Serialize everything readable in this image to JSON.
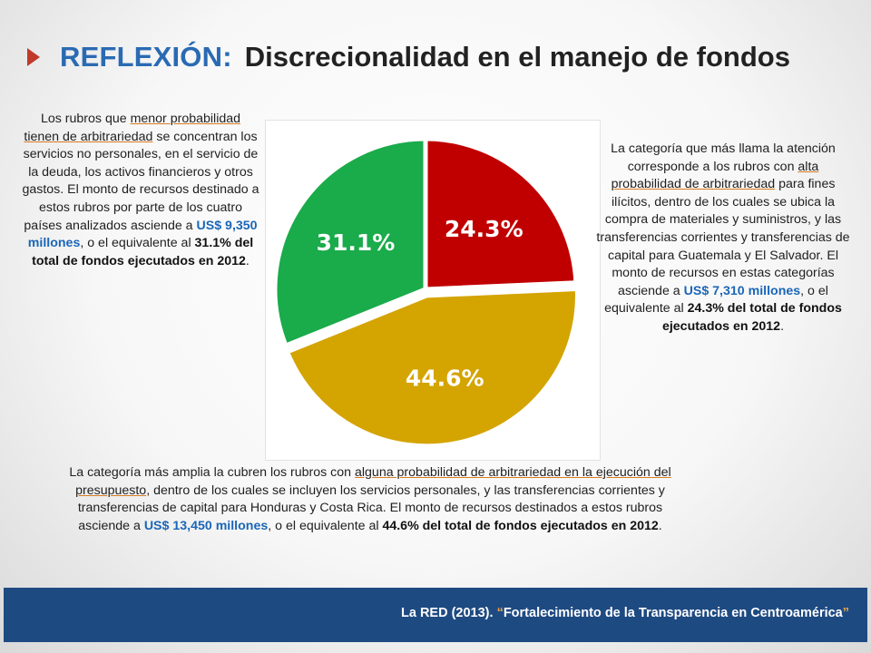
{
  "header": {
    "keyword": "REFLEXIÓN:",
    "title": "Discrecionalidad en el manejo de fondos"
  },
  "chart_data": {
    "type": "pie",
    "slices": [
      {
        "label": "24.3%",
        "value": 24.3,
        "color": "#c00000"
      },
      {
        "label": "44.6%",
        "value": 44.6,
        "color": "#d4a400"
      },
      {
        "label": "31.1%",
        "value": 31.1,
        "color": "#1aab4a"
      }
    ],
    "exploded_slice": "44.6%"
  },
  "left_text": {
    "p1": "Los rubros que ",
    "u1": "menor probabilidad tienen de arbitrariedad",
    "p2": " se concentran los servicios no personales, en el servicio de la deuda, los activos financieros y otros gastos.  El monto de recursos destinado a estos rubros por parte de los cuatro países analizados asciende a ",
    "amount": "US$ 9,350 millones",
    "p3": ", o el equivalente al ",
    "bold": "31.1% del total de fondos ejecutados en 2012",
    "end": "."
  },
  "right_text": {
    "p1": "La categoría que más llama la atención corresponde a los rubros con ",
    "u1": "alta probabilidad de arbitrariedad",
    "p2": " para fines ilícitos, dentro de los cuales se ubica la compra de materiales y suministros, y las transferencias corrientes y transferencias de capital para Guatemala y El Salvador.  El monto de recursos en estas categorías asciende a ",
    "amount": "US$ 7,310 millones",
    "p3": ", o el equivalente al ",
    "bold": "24.3% del total de fondos ejecutados en 2012",
    "end": "."
  },
  "bottom_text": {
    "p1": "La categoría más amplia la cubren los rubros con ",
    "u1": "alguna probabilidad de arbitrariedad en la ejecución del presupuesto",
    "p2": ", dentro de los cuales se incluyen los servicios personales, y las transferencias corrientes y transferencias de capital para Honduras y Costa Rica. El monto de recursos destinados a estos rubros asciende a ",
    "amount": "US$ 13,450 millones",
    "p3": ", o el equivalente al ",
    "bold": "44.6% del total de fondos ejecutados en 2012",
    "end": "."
  },
  "footer": {
    "source": "La RED (2013). ",
    "quote_open": "“",
    "work": "Fortalecimiento de la Transparencia en Centroamérica",
    "quote_close": "”"
  },
  "colors": {
    "accent_blue": "#2a6ab3",
    "footer_bg": "#1e4a82",
    "arrow": "#c0392b"
  }
}
